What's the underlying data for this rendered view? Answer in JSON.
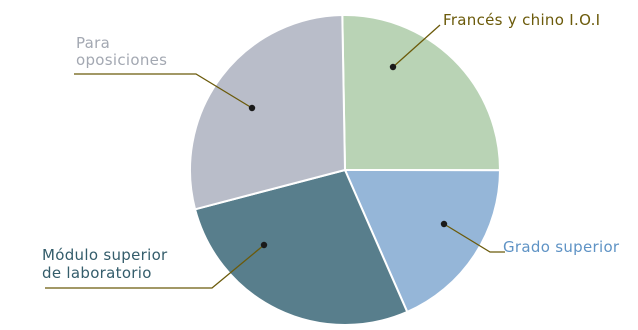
{
  "chart_data": {
    "type": "pie",
    "title": "",
    "slices": [
      {
        "label": [
          "Francés y chino I.O.I"
        ],
        "value": 25.3,
        "color": "#b9d3b5",
        "text_color": "#6b5a0a"
      },
      {
        "label": [
          "Grado superior"
        ],
        "value": 18.4,
        "color": "#95b6d8",
        "text_color": "#5f93c5"
      },
      {
        "label": [
          "Módulo superior",
          "de laboratorio"
        ],
        "value": 27.5,
        "color": "#587e8c",
        "text_color": "#345d6b"
      },
      {
        "label": [
          "Para",
          "oposiciones"
        ],
        "value": 28.8,
        "color": "#b9bdc9",
        "text_color": "#a3a8b2"
      }
    ],
    "legend": "callout labels",
    "start_angle_deg": -1,
    "direction": "clockwise"
  }
}
